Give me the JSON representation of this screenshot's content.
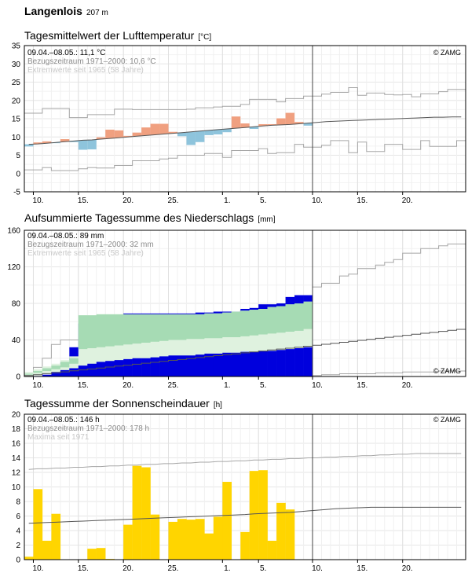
{
  "station": {
    "name": "Langenlois",
    "elevation": "207 m"
  },
  "copyright": "© ZAMG",
  "x_ticks": [
    "10.",
    "15.",
    "20.",
    "25.",
    "1.",
    "5.",
    "10.",
    "15.",
    "20."
  ],
  "chart_data": [
    {
      "id": "temperature",
      "type": "bar",
      "title": "Tagesmittelwert der Lufttemperatur",
      "unit": "[°C]",
      "period": "09.04.–08.05.: 11,1 °C",
      "reference": "Bezugszeitraum 1971–2000: 10,6 °C",
      "extremes": "Extremwerte seit 1965 (58 Jahre)",
      "ylim": [
        -5,
        35
      ],
      "yticks": [
        -5,
        0,
        5,
        10,
        15,
        20,
        25,
        30,
        35
      ],
      "colors": {
        "warm": "#f0a080",
        "cold": "#8ec4dc",
        "line": "#555555",
        "extreme": "#a6a6a6"
      },
      "daily_values": [
        7.4,
        8.5,
        8.8,
        8.3,
        9.4,
        8.6,
        6.5,
        6.6,
        9.9,
        12,
        11.8,
        10.3,
        11.2,
        12.6,
        13.6,
        13.6,
        11.4,
        10.2,
        7.8,
        8.6,
        10.5,
        10.7,
        11.3,
        15.6,
        13.7,
        12.2,
        13.5,
        13.5,
        15.1,
        16.6,
        14.1,
        13.1
      ],
      "normal": [
        8.0,
        8.1,
        8.3,
        8.5,
        8.7,
        8.9,
        9.1,
        9.2,
        9.4,
        9.6,
        9.8,
        10.0,
        10.2,
        10.4,
        10.6,
        10.8,
        11.0,
        11.2,
        11.4,
        11.6,
        11.8,
        12.0,
        12.2,
        12.4,
        12.6,
        12.8,
        13.0,
        13.2,
        13.3,
        13.4,
        13.6,
        13.8,
        14.0,
        14.2,
        14.3,
        14.4,
        14.5,
        14.6,
        14.7,
        14.8,
        14.9,
        15.0,
        15.1,
        15.2,
        15.3,
        15.4,
        15.4,
        15.5,
        15.5
      ],
      "extreme_max": [
        16.5,
        16.5,
        17.8,
        17.8,
        17.8,
        15.3,
        15.3,
        16.1,
        16.1,
        16.1,
        17.6,
        17.6,
        17.5,
        17.5,
        17.5,
        17.5,
        17.5,
        17.5,
        17.6,
        18.0,
        18.0,
        18.2,
        18.4,
        18.4,
        18.9,
        20.3,
        20.3,
        20.3,
        19.6,
        20.5,
        20.5,
        21.2,
        21.2,
        21.7,
        22.2,
        22.2,
        23.5,
        21.4,
        22.0,
        22.0,
        21.6,
        21.5,
        21.6,
        21.0,
        21.8,
        21.8,
        22.4,
        23.0,
        23.0
      ],
      "extreme_min": [
        1.0,
        1.0,
        1.6,
        0.8,
        0.8,
        0.8,
        1.3,
        1.6,
        1.5,
        1.5,
        2.2,
        2.2,
        3.5,
        3.5,
        3.5,
        4.0,
        4.2,
        5.0,
        5.0,
        5.0,
        5.5,
        5.5,
        4.4,
        6.3,
        6.3,
        6.3,
        6.8,
        5.5,
        5.7,
        5.7,
        8.0,
        7.2,
        7.2,
        7.7,
        9.0,
        9.0,
        5.7,
        8.6,
        6.0,
        6.0,
        8.0,
        8.0,
        6.6,
        6.6,
        9.0,
        7.4,
        7.4,
        7.4,
        9.0
      ]
    },
    {
      "id": "precipitation",
      "type": "area",
      "title": "Aufsummierte Tagessumme des Niederschlags",
      "unit": "[mm]",
      "period": "09.04.–08.05.: 89 mm",
      "reference": "Bezugszeitraum 1971–2000: 32 mm",
      "extremes": "Extremwerte seit 1965 (58 Jahre)",
      "ylim": [
        0,
        160
      ],
      "yticks": [
        0,
        40,
        80,
        120,
        160
      ],
      "colors": {
        "actual": "#0000dd",
        "band_outer": "#dff2df",
        "band_inner": "#a6dbb4",
        "line": "#555555",
        "extreme": "#a6a6a6"
      },
      "cumulative": [
        0.5,
        0.5,
        2,
        6,
        15,
        32,
        58,
        59,
        60,
        62,
        67,
        69,
        69,
        69,
        69,
        69,
        69,
        69,
        69,
        70,
        70,
        71,
        71,
        71,
        74,
        75,
        79,
        79,
        80,
        87,
        89,
        89
      ],
      "normal": [
        1.0,
        2.0,
        3.1,
        4.1,
        5.1,
        6.2,
        7.2,
        8.2,
        9.3,
        10.3,
        11.4,
        12.4,
        13.4,
        14.5,
        15.5,
        16.5,
        17.6,
        18.6,
        19.6,
        20.7,
        21.7,
        22.8,
        23.8,
        24.8,
        25.9,
        26.9,
        27.9,
        29.0,
        30.0,
        31.0,
        32.0,
        33.1,
        34.2,
        35.3,
        36.3,
        37.4,
        38.5,
        39.6,
        40.7,
        41.8,
        42.9,
        44.0,
        45.1,
        46.2,
        47.3,
        48.3,
        49.4,
        50.5,
        51.6
      ],
      "band_outer_low": [
        0,
        1,
        3,
        5,
        7,
        9,
        12,
        14,
        16,
        17,
        18,
        19,
        20,
        20,
        21,
        22,
        23,
        23,
        23,
        24,
        25,
        25,
        26,
        26,
        27,
        27,
        28,
        28,
        29,
        30,
        31,
        32
      ],
      "band_outer_high": [
        5,
        8,
        11,
        14,
        18,
        22,
        67,
        67,
        68,
        68,
        68,
        68,
        68,
        68,
        68,
        68,
        68,
        68,
        68,
        68,
        69,
        69,
        70,
        71,
        72,
        73,
        74,
        76,
        77,
        79,
        80,
        82
      ],
      "band_inner_low": [
        2,
        4,
        6,
        8,
        10,
        14,
        30,
        31,
        32,
        33,
        34,
        35,
        36,
        37,
        38,
        39,
        40,
        40,
        41,
        41,
        42,
        42,
        43,
        43,
        44,
        45,
        46,
        47,
        48,
        49,
        50,
        52
      ],
      "band_inner_high": [
        3,
        6,
        9,
        12,
        16,
        20,
        67,
        67,
        68,
        68,
        68,
        68,
        68,
        68,
        68,
        68,
        68,
        68,
        68,
        68,
        69,
        69,
        70,
        71,
        72,
        73,
        74,
        76,
        77,
        79,
        80,
        82
      ],
      "extreme_max": [
        2,
        10,
        20,
        35,
        40,
        40,
        40,
        40,
        42,
        42,
        52,
        52,
        60,
        60,
        60,
        60,
        60,
        62,
        62,
        64,
        64,
        64,
        66,
        66,
        72,
        72,
        74,
        74,
        74,
        76,
        82,
        82,
        98,
        102,
        102,
        110,
        112,
        118,
        118,
        122,
        125,
        128,
        135,
        135,
        140,
        140,
        143,
        145,
        145
      ],
      "extreme_min": [
        0,
        0,
        0,
        0,
        0,
        0,
        0,
        0,
        0,
        0,
        0,
        0,
        0,
        0,
        0,
        0,
        0,
        0,
        0,
        0,
        0,
        0,
        0,
        0,
        0,
        0,
        0,
        0,
        0,
        0,
        1,
        1,
        1,
        2,
        2,
        3,
        3,
        3,
        3,
        4,
        4,
        4,
        5,
        5,
        5,
        5,
        6,
        6,
        6
      ]
    },
    {
      "id": "sunshine",
      "type": "bar",
      "title": "Tagessumme der Sonnenscheindauer",
      "unit": "[h]",
      "period": "09.04.–08.05.: 146 h",
      "reference": "Bezugszeitraum 1971–2000: 178 h",
      "extremes": "Maxima seit 1971",
      "ylim": [
        0,
        20
      ],
      "yticks": [
        0,
        2,
        4,
        6,
        8,
        10,
        12,
        14,
        16,
        18,
        20
      ],
      "colors": {
        "bar": "#ffd500",
        "line": "#555555",
        "extreme": "#a6a6a6"
      },
      "daily_values": [
        0.4,
        9.7,
        2.6,
        6.3,
        0,
        0,
        0,
        1.5,
        1.6,
        0.1,
        0,
        4.8,
        12.9,
        12.7,
        6.2,
        0,
        5.2,
        5.6,
        5.5,
        5.6,
        3.6,
        5.9,
        10.7,
        0,
        3.8,
        12.2,
        12.3,
        2.6,
        7.8,
        6.9,
        0,
        0
      ],
      "normal": [
        5.0,
        5.05,
        5.1,
        5.15,
        5.2,
        5.25,
        5.3,
        5.35,
        5.4,
        5.45,
        5.5,
        5.55,
        5.6,
        5.65,
        5.7,
        5.75,
        5.8,
        5.85,
        5.9,
        5.95,
        6.0,
        6.05,
        6.1,
        6.15,
        6.2,
        6.3,
        6.35,
        6.4,
        6.45,
        6.5,
        6.6,
        6.7,
        6.8,
        6.9,
        7.0,
        7.05,
        7.1,
        7.15,
        7.2,
        7.2,
        7.2,
        7.2,
        7.2,
        7.2,
        7.2,
        7.2,
        7.2,
        7.2,
        7.2
      ],
      "extreme_max": [
        12.4,
        12.5,
        12.5,
        12.6,
        12.6,
        12.7,
        12.7,
        12.8,
        12.8,
        12.9,
        12.9,
        13.0,
        13.0,
        13.1,
        13.1,
        13.2,
        13.2,
        13.3,
        13.3,
        13.4,
        13.4,
        13.5,
        13.5,
        13.6,
        13.6,
        13.7,
        13.7,
        13.8,
        13.8,
        13.9,
        13.9,
        14.0,
        14.0,
        14.1,
        14.1,
        14.2,
        14.2,
        14.3,
        14.3,
        14.4,
        14.4,
        14.5,
        14.5,
        14.6,
        14.6,
        14.6,
        14.6,
        14.6,
        14.6
      ]
    }
  ]
}
